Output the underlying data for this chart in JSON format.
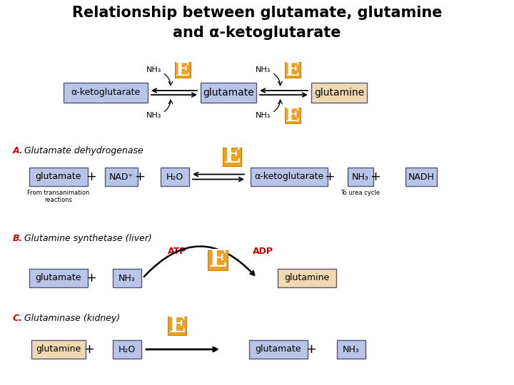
{
  "title_line1": "Relationship between glutamate, glutamine",
  "title_line2": "and α-ketoglutarate",
  "bg_color": "#ffffff",
  "box_blue": "#b8c4e8",
  "box_tan": "#f0d8b0",
  "enzyme_orange": "#f0a020",
  "enzyme_text": "#ffffff",
  "red_text": "#cc0000",
  "arrow_color": "#000000",
  "section_A_label_bold": "A.",
  "section_A_label_rest": " Glutamate dehydrogenase",
  "section_B_label_bold": "B.",
  "section_B_label_rest": " Glutamine synthetase (liver)",
  "section_C_label_bold": "C.",
  "section_C_label_rest": " Glutaminase (kidney)"
}
